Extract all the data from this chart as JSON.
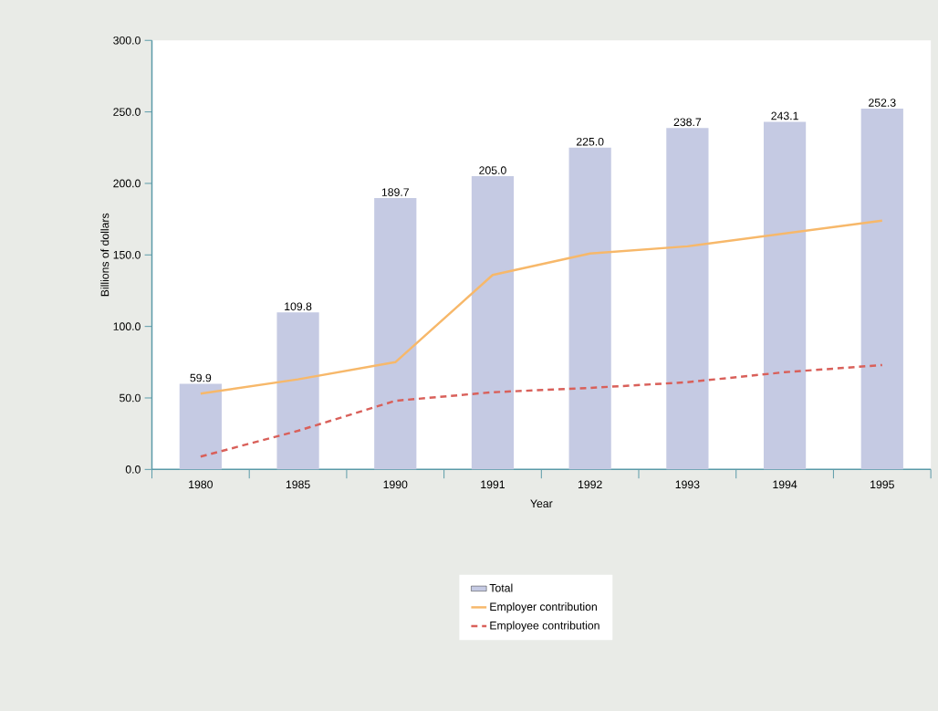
{
  "chart_data": {
    "type": "bar",
    "xlabel": "Year",
    "ylabel": "Billions of dollars",
    "categories": [
      "1980",
      "1985",
      "1990",
      "1991",
      "1992",
      "1993",
      "1994",
      "1995"
    ],
    "series": [
      {
        "name": "Total",
        "color": "#c5cae3",
        "values": [
          59.9,
          109.8,
          189.7,
          205.0,
          225.0,
          238.7,
          243.1,
          252.3
        ],
        "value_labels": [
          "59.9",
          "109.8",
          "189.7",
          "205.0",
          "225.0",
          "238.7",
          "243.1",
          "252.3"
        ]
      },
      {
        "name": "Employer contribution",
        "type": "line",
        "line_style": "solid",
        "color": "#f7b86a",
        "values": [
          53,
          63,
          75,
          136,
          151,
          156,
          165,
          174
        ]
      },
      {
        "name": "Employee contribution",
        "type": "line",
        "line_style": "dashed",
        "color": "#d9605a",
        "values": [
          9,
          27,
          48,
          54,
          57,
          61,
          68,
          73
        ]
      }
    ],
    "ylim": [
      0,
      300
    ],
    "yticks": [
      {
        "value": 0,
        "label": "0.0"
      },
      {
        "value": 50,
        "label": "50.0"
      },
      {
        "value": 100,
        "label": "100.0"
      },
      {
        "value": 150,
        "label": "150.0"
      },
      {
        "value": 200,
        "label": "200.0"
      },
      {
        "value": 250,
        "label": "250.0"
      },
      {
        "value": 300,
        "label": "300.0"
      }
    ],
    "grid": false,
    "legend": "bottom",
    "marker": "none"
  }
}
